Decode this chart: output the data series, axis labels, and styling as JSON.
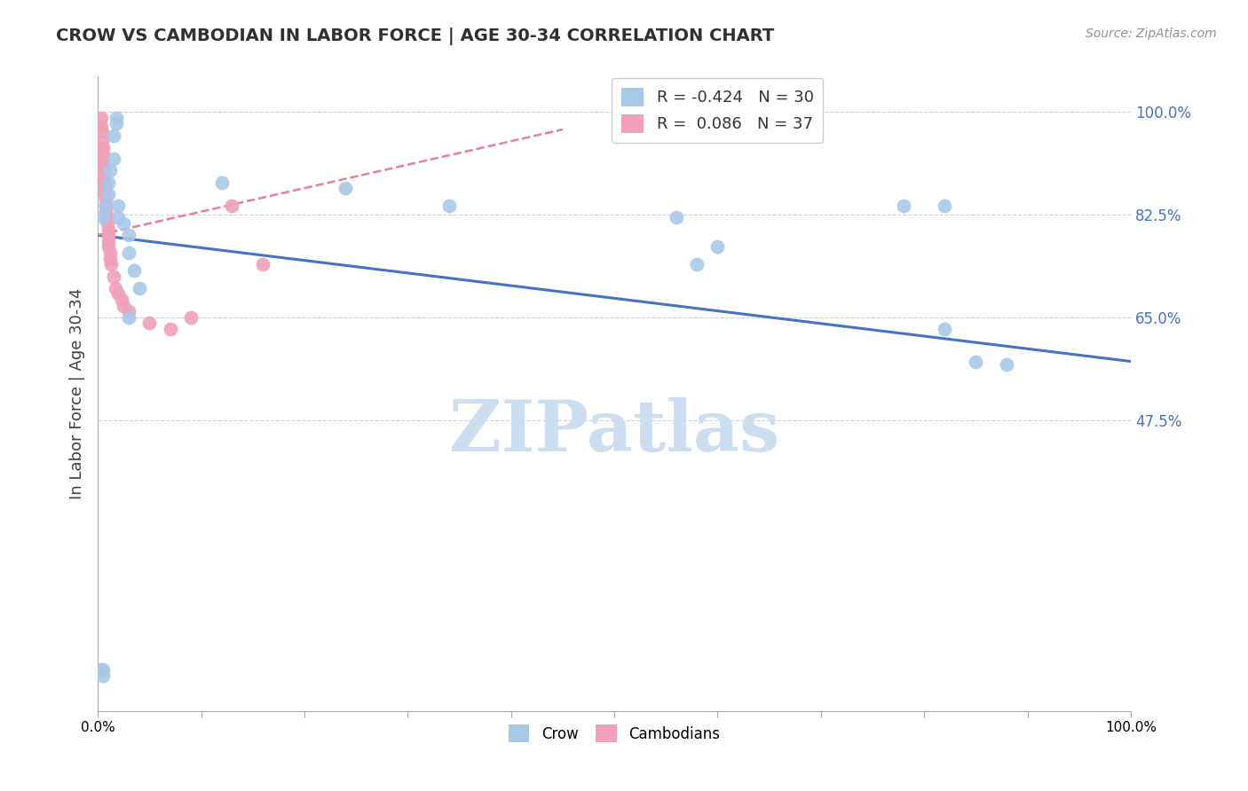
{
  "title": "CROW VS CAMBODIAN IN LABOR FORCE | AGE 30-34 CORRELATION CHART",
  "source": "Source: ZipAtlas.com",
  "ylabel": "In Labor Force | Age 30-34",
  "xlim": [
    0.0,
    1.0
  ],
  "ylim": [
    -0.02,
    1.06
  ],
  "yticks": [
    0.475,
    0.65,
    0.825,
    1.0
  ],
  "ytick_labels": [
    "47.5%",
    "65.0%",
    "82.5%",
    "100.0%"
  ],
  "xtick_vals": [
    0.0,
    0.1,
    0.2,
    0.3,
    0.4,
    0.5,
    0.6,
    0.7,
    0.8,
    0.9,
    1.0
  ],
  "xtick_labels": [
    "0.0%",
    "",
    "",
    "",
    "",
    "",
    "",
    "",
    "",
    "",
    "100.0%"
  ],
  "crow_color": "#a8c8e8",
  "cambodian_color": "#f0a0b8",
  "crow_R": -0.424,
  "crow_N": 30,
  "cambodian_R": 0.086,
  "cambodian_N": 37,
  "crow_x": [
    0.005,
    0.008,
    0.01,
    0.01,
    0.012,
    0.015,
    0.015,
    0.018,
    0.018,
    0.02,
    0.02,
    0.025,
    0.03,
    0.03,
    0.035,
    0.04,
    0.12,
    0.24,
    0.34,
    0.56,
    0.6,
    0.78,
    0.82,
    0.58,
    0.82,
    0.85,
    0.88,
    0.03,
    0.005,
    0.005
  ],
  "crow_y": [
    0.82,
    0.84,
    0.86,
    0.88,
    0.9,
    0.92,
    0.96,
    0.98,
    0.99,
    0.84,
    0.82,
    0.81,
    0.79,
    0.76,
    0.73,
    0.7,
    0.88,
    0.87,
    0.84,
    0.82,
    0.77,
    0.84,
    0.84,
    0.74,
    0.63,
    0.575,
    0.57,
    0.65,
    0.05,
    0.04
  ],
  "cambodian_x": [
    0.003,
    0.003,
    0.004,
    0.004,
    0.005,
    0.005,
    0.005,
    0.005,
    0.006,
    0.006,
    0.007,
    0.007,
    0.007,
    0.008,
    0.008,
    0.008,
    0.009,
    0.009,
    0.01,
    0.01,
    0.01,
    0.01,
    0.012,
    0.012,
    0.013,
    0.015,
    0.017,
    0.02,
    0.023,
    0.025,
    0.03,
    0.05,
    0.07,
    0.09,
    0.13,
    0.003,
    0.16
  ],
  "cambodian_y": [
    0.99,
    0.975,
    0.965,
    0.95,
    0.94,
    0.93,
    0.92,
    0.91,
    0.9,
    0.89,
    0.88,
    0.87,
    0.86,
    0.85,
    0.84,
    0.83,
    0.82,
    0.81,
    0.8,
    0.79,
    0.78,
    0.77,
    0.76,
    0.75,
    0.74,
    0.72,
    0.7,
    0.69,
    0.68,
    0.67,
    0.66,
    0.64,
    0.63,
    0.65,
    0.84,
    0.05,
    0.74
  ],
  "crow_trendline_x": [
    0.0,
    1.0
  ],
  "crow_trendline_y": [
    0.79,
    0.575
  ],
  "cambodian_trendline_x": [
    0.0,
    0.45
  ],
  "cambodian_trendline_y": [
    0.79,
    0.97
  ],
  "background_color": "#ffffff",
  "grid_color": "#d0d0d0",
  "crow_line_color": "#4472c4",
  "cambodian_line_color": "#e87d96",
  "title_color": "#303030",
  "source_color": "#909090",
  "axis_label_color": "#404040",
  "right_tick_color": "#4472c4",
  "watermark_text": "ZIPatlas",
  "watermark_color": "#ccddf0"
}
